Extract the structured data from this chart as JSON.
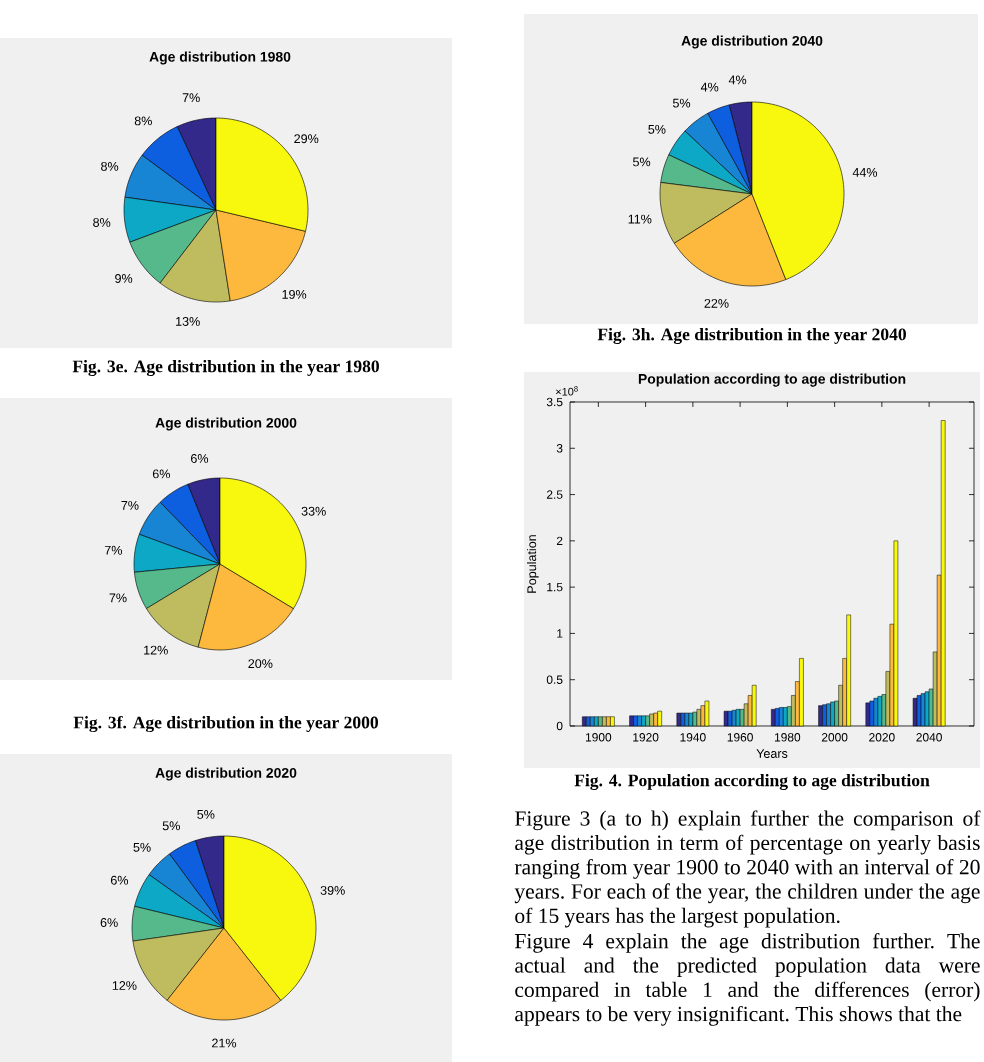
{
  "chart_data": [
    {
      "type": "pie",
      "title": "Age distribution 1980",
      "categories": [
        null,
        null,
        null,
        null,
        null,
        null,
        null,
        null
      ],
      "values": [
        7,
        8,
        8,
        8,
        9,
        13,
        19,
        29
      ],
      "value_labels": [
        "7%",
        "8%",
        "8%",
        "8%",
        "9%",
        "13%",
        "19%",
        "29%"
      ],
      "colors": [
        "#33298a",
        "#0e5ee0",
        "#1784d4",
        "#0ca8c5",
        "#55b98c",
        "#bfbc5f",
        "#fcb93d",
        "#f8f80f"
      ],
      "annotations": [
        "Fig. 3e. Age distribution in the year 1980"
      ]
    },
    {
      "type": "pie",
      "title": "Age distribution 2000",
      "categories": [
        null,
        null,
        null,
        null,
        null,
        null,
        null,
        null
      ],
      "values": [
        6,
        6,
        7,
        7,
        7,
        12,
        20,
        33
      ],
      "value_labels": [
        "6%",
        "6%",
        "7%",
        "7%",
        "7%",
        "12%",
        "20%",
        "33%"
      ],
      "colors": [
        "#33298a",
        "#0e5ee0",
        "#1784d4",
        "#0ca8c5",
        "#55b98c",
        "#bfbc5f",
        "#fcb93d",
        "#f8f80f"
      ],
      "annotations": [
        "Fig. 3f. Age distribution in the year 2000"
      ]
    },
    {
      "type": "pie",
      "title": "Age distribution 2020",
      "categories": [
        null,
        null,
        null,
        null,
        null,
        null,
        null,
        null
      ],
      "values": [
        5,
        5,
        5,
        6,
        6,
        12,
        21,
        39
      ],
      "value_labels": [
        "5%",
        "5%",
        "5%",
        "6%",
        "6%",
        "12%",
        "21%",
        "39%"
      ],
      "colors": [
        "#33298a",
        "#0e5ee0",
        "#1784d4",
        "#0ca8c5",
        "#55b98c",
        "#bfbc5f",
        "#fcb93d",
        "#f8f80f"
      ]
    },
    {
      "type": "pie",
      "title": "Age distribution 2040",
      "categories": [
        null,
        null,
        null,
        null,
        null,
        null,
        null,
        null
      ],
      "values": [
        4,
        4,
        5,
        5,
        5,
        11,
        22,
        44
      ],
      "value_labels": [
        "4%",
        "4%",
        "5%",
        "5%",
        "5%",
        "11%",
        "22%",
        "44%"
      ],
      "colors": [
        "#33298a",
        "#0e5ee0",
        "#1784d4",
        "#0ca8c5",
        "#55b98c",
        "#bfbc5f",
        "#fcb93d",
        "#f8f80f"
      ],
      "annotations": [
        "Fig. 3h. Age distribution in the year 2040"
      ]
    },
    {
      "type": "bar",
      "title": "Population according to age distribution",
      "xlabel": "Years",
      "ylabel": "Population",
      "categories": [
        "1900",
        "1920",
        "1940",
        "1960",
        "1980",
        "2000",
        "2020",
        "2040"
      ],
      "series": [
        {
          "color": "#33298a",
          "values": [
            0.1,
            0.11,
            0.14,
            0.16,
            0.18,
            0.22,
            0.25,
            0.3
          ]
        },
        {
          "color": "#0e5ee0",
          "values": [
            0.1,
            0.11,
            0.14,
            0.16,
            0.19,
            0.23,
            0.27,
            0.33
          ]
        },
        {
          "color": "#1784d4",
          "values": [
            0.1,
            0.11,
            0.14,
            0.17,
            0.2,
            0.24,
            0.3,
            0.35
          ]
        },
        {
          "color": "#0ca8c5",
          "values": [
            0.1,
            0.11,
            0.14,
            0.18,
            0.2,
            0.26,
            0.32,
            0.37
          ]
        },
        {
          "color": "#55b98c",
          "values": [
            0.1,
            0.11,
            0.15,
            0.18,
            0.21,
            0.27,
            0.34,
            0.4
          ]
        },
        {
          "color": "#bfbc5f",
          "values": [
            0.1,
            0.13,
            0.18,
            0.24,
            0.33,
            0.44,
            0.59,
            0.8
          ]
        },
        {
          "color": "#fcb93d",
          "values": [
            0.1,
            0.14,
            0.22,
            0.33,
            0.48,
            0.73,
            1.1,
            1.63
          ]
        },
        {
          "color": "#f8f80f",
          "values": [
            0.1,
            0.16,
            0.27,
            0.44,
            0.73,
            1.2,
            2.0,
            3.3
          ]
        }
      ],
      "ylim": [
        0,
        3.5
      ],
      "yticks": [
        0,
        0.5,
        1,
        1.5,
        2,
        2.5,
        3,
        3.5
      ],
      "annotations": [
        "×10$^{8}$",
        "Fig. 4. Population according to age distribution"
      ]
    },
    {
      "type": "other",
      "annotations": [
        "Figure 3 (a to h) explain further the comparison of age distribution in term of percentage on yearly basis ranging from year 1900 to 2040 with an interval of 20 years. For each of the year, the children under the age of 15 years has the largest population.",
        "Figure 4 explain the age distribution further. The actual and the predicted population data were compared in table 1 and the differences (error) appears to be very insignificant. This shows that the"
      ]
    }
  ]
}
